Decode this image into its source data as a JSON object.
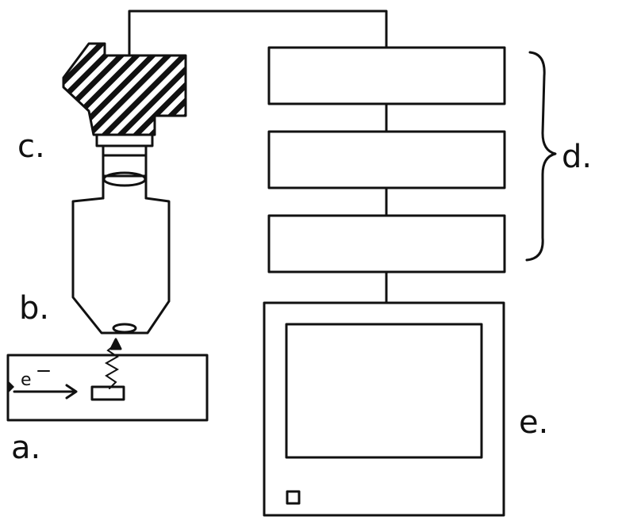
{
  "labels": {
    "a": "a.",
    "b": "b.",
    "c": "c.",
    "d": "d.",
    "e": "e."
  },
  "electron_symbol": "e",
  "colors": {
    "ink": "#111111",
    "background": "#ffffff"
  }
}
